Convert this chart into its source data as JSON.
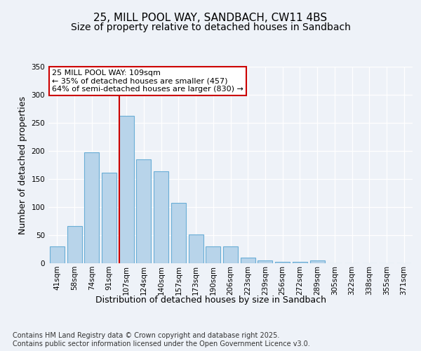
{
  "title_line1": "25, MILL POOL WAY, SANDBACH, CW11 4BS",
  "title_line2": "Size of property relative to detached houses in Sandbach",
  "xlabel": "Distribution of detached houses by size in Sandbach",
  "ylabel": "Number of detached properties",
  "categories": [
    "41sqm",
    "58sqm",
    "74sqm",
    "91sqm",
    "107sqm",
    "124sqm",
    "140sqm",
    "157sqm",
    "173sqm",
    "190sqm",
    "206sqm",
    "223sqm",
    "239sqm",
    "256sqm",
    "272sqm",
    "289sqm",
    "305sqm",
    "322sqm",
    "338sqm",
    "355sqm",
    "371sqm"
  ],
  "values": [
    30,
    66,
    197,
    161,
    262,
    185,
    164,
    107,
    51,
    30,
    30,
    10,
    5,
    3,
    2,
    5,
    0,
    0,
    0,
    0,
    0
  ],
  "bar_color": "#b8d4ea",
  "bar_edge_color": "#6aaed6",
  "vline_color": "#cc0000",
  "vline_index": 4,
  "ylim": [
    0,
    350
  ],
  "yticks": [
    0,
    50,
    100,
    150,
    200,
    250,
    300,
    350
  ],
  "annotation_text": "25 MILL POOL WAY: 109sqm\n← 35% of detached houses are smaller (457)\n64% of semi-detached houses are larger (830) →",
  "annotation_box_color": "#cc0000",
  "footer_text": "Contains HM Land Registry data © Crown copyright and database right 2025.\nContains public sector information licensed under the Open Government Licence v3.0.",
  "background_color": "#eef2f8",
  "title_fontsize": 11,
  "subtitle_fontsize": 10,
  "axis_label_fontsize": 9,
  "tick_fontsize": 7.5,
  "footer_fontsize": 7,
  "annotation_fontsize": 8
}
